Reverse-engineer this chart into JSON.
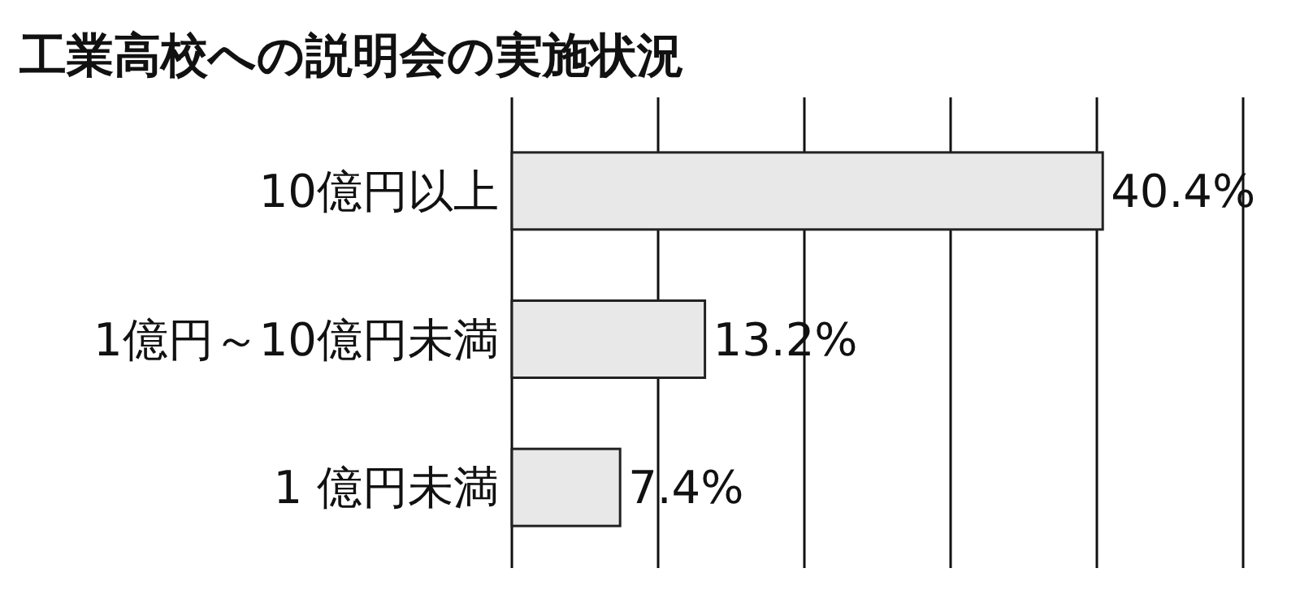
{
  "chart_data": {
    "type": "bar",
    "orientation": "horizontal",
    "title": "工業高校への説明会の実施状況",
    "categories": [
      "10億円以上",
      "1億円～10億円未満",
      "1 億円未満"
    ],
    "values": [
      40.4,
      13.2,
      7.4
    ],
    "value_labels": [
      "40.4%",
      "13.2%",
      "7.4%"
    ],
    "color": "#e8e8e8",
    "xlim": [
      0,
      50
    ],
    "xticks": [
      {
        "value": 0,
        "label": null
      },
      {
        "value": 10,
        "label": null
      },
      {
        "value": 20,
        "label": null
      },
      {
        "value": 30,
        "label": null
      },
      {
        "value": 40,
        "label": null
      },
      {
        "value": 50,
        "label": null
      }
    ],
    "grid": "x",
    "tick_labels": "y"
  }
}
